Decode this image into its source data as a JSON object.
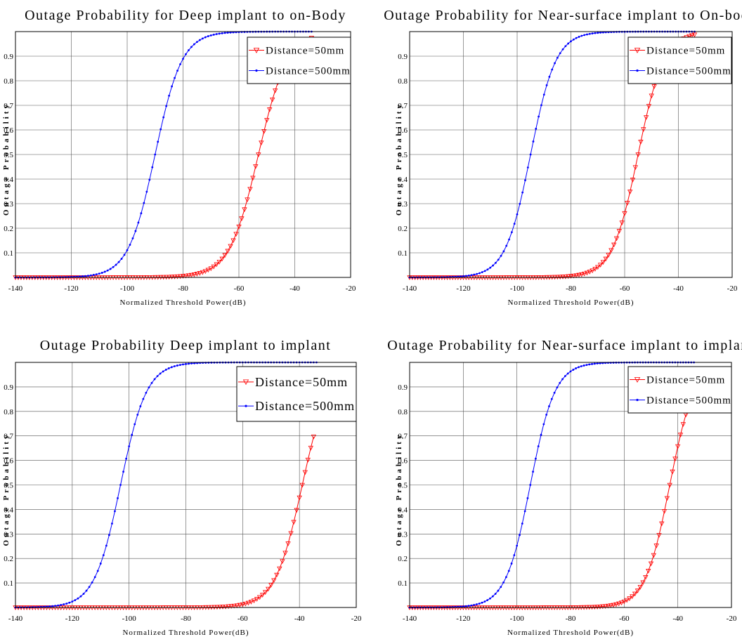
{
  "figure": {
    "background": "#ffffff",
    "grid": true
  },
  "series_styles": [
    {
      "color": "#ff0000",
      "marker": "triangle-down-open"
    },
    {
      "color": "#0000ff",
      "marker": "dot"
    }
  ],
  "chart_data": [
    {
      "type": "line",
      "title": "Outage Probability for Deep implant to on-Body",
      "xlabel": "Normalized Threshold Power(dB)",
      "ylabel": "Outage Probability",
      "xlim": [
        -140,
        -20
      ],
      "ylim": [
        0,
        1
      ],
      "xticks": [
        -140,
        -120,
        -100,
        -80,
        -60,
        -40,
        -20
      ],
      "yticks": [
        0.1,
        0.2,
        0.3,
        0.4,
        0.5,
        0.6,
        0.7,
        0.8,
        0.9
      ],
      "legend": "top-right",
      "grid": true,
      "series": [
        {
          "name": "Distance=50mm",
          "x_range": [
            -140,
            -34
          ],
          "midpoint": -53,
          "spread": 5.2,
          "clip_top": 1.0
        },
        {
          "name": "Distance=500mm",
          "x_range": [
            -140,
            -34
          ],
          "midpoint": -90,
          "spread": 4.8,
          "clip_top": 1.0
        }
      ]
    },
    {
      "type": "line",
      "title": "Outage Probability for Near-surface implant to On-body",
      "xlabel": "Normalized Threshold Power(dB)",
      "ylabel": "Outage Probability",
      "xlim": [
        -140,
        -20
      ],
      "ylim": [
        0,
        1
      ],
      "xticks": [
        -140,
        -120,
        -100,
        -80,
        -60,
        -40,
        -20
      ],
      "yticks": [
        0.1,
        0.2,
        0.3,
        0.4,
        0.5,
        0.6,
        0.7,
        0.8,
        0.9
      ],
      "legend": "top-right",
      "grid": true,
      "series": [
        {
          "name": "Distance=50mm",
          "x_range": [
            -140,
            -34
          ],
          "midpoint": -55,
          "spread": 4.8,
          "clip_top": 1.0
        },
        {
          "name": "Distance=500mm",
          "x_range": [
            -140,
            -34
          ],
          "midpoint": -95,
          "spread": 4.7,
          "clip_top": 1.0
        }
      ]
    },
    {
      "type": "line",
      "title": "Outage Probability Deep implant to implant",
      "xlabel": "Normalized Threshold Power(dB)",
      "ylabel": "Outage Probability",
      "xlim": [
        -140,
        -20
      ],
      "ylim": [
        0,
        1
      ],
      "xticks": [
        -140,
        -120,
        -100,
        -80,
        -60,
        -40,
        -20
      ],
      "yticks": [
        0.1,
        0.2,
        0.3,
        0.4,
        0.5,
        0.6,
        0.7,
        0.8,
        0.9
      ],
      "legend": "top-right",
      "grid": true,
      "series": [
        {
          "name": "Distance=50mm",
          "x_range": [
            -140,
            -34
          ],
          "midpoint": -39,
          "spread": 4.8,
          "clip_top": 0.73
        },
        {
          "name": "Distance=500mm",
          "x_range": [
            -140,
            -34
          ],
          "midpoint": -103,
          "spread": 4.6,
          "clip_top": 1.0
        }
      ]
    },
    {
      "type": "line",
      "title": "Outage Probability for Near-surface implant to implant",
      "xlabel": "Normalized Threshold Power(dB)",
      "ylabel": "Outage Probability",
      "xlim": [
        -140,
        -20
      ],
      "ylim": [
        0,
        1
      ],
      "xticks": [
        -140,
        -120,
        -100,
        -80,
        -60,
        -40,
        -20
      ],
      "yticks": [
        0.1,
        0.2,
        0.3,
        0.4,
        0.5,
        0.6,
        0.7,
        0.8,
        0.9
      ],
      "legend": "top-right",
      "grid": true,
      "series": [
        {
          "name": "Distance=50mm",
          "x_range": [
            -140,
            -34
          ],
          "midpoint": -43,
          "spread": 4.6,
          "clip_top": 1.0
        },
        {
          "name": "Distance=500mm",
          "x_range": [
            -140,
            -34
          ],
          "midpoint": -95,
          "spread": 4.6,
          "clip_top": 1.0
        }
      ]
    }
  ]
}
